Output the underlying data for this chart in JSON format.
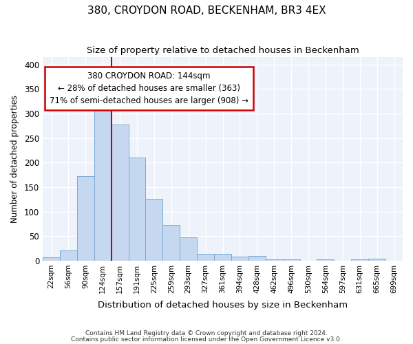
{
  "title": "380, CROYDON ROAD, BECKENHAM, BR3 4EX",
  "subtitle": "Size of property relative to detached houses in Beckenham",
  "xlabel": "Distribution of detached houses by size in Beckenham",
  "ylabel": "Number of detached properties",
  "bar_color": "#c5d8f0",
  "bar_edge_color": "#7aaad4",
  "background_color": "#eef2fb",
  "grid_color": "#ffffff",
  "fig_background": "#ffffff",
  "categories": [
    "22sqm",
    "56sqm",
    "90sqm",
    "124sqm",
    "157sqm",
    "191sqm",
    "225sqm",
    "259sqm",
    "293sqm",
    "327sqm",
    "361sqm",
    "394sqm",
    "428sqm",
    "462sqm",
    "496sqm",
    "530sqm",
    "564sqm",
    "597sqm",
    "631sqm",
    "665sqm",
    "699sqm"
  ],
  "values": [
    7,
    21,
    172,
    310,
    277,
    210,
    126,
    73,
    48,
    14,
    14,
    8,
    9,
    3,
    2,
    0,
    2,
    0,
    3,
    4,
    0
  ],
  "annotation_text": "380 CROYDON ROAD: 144sqm\n← 28% of detached houses are smaller (363)\n71% of semi-detached houses are larger (908) →",
  "annotation_box_color": "#ffffff",
  "annotation_border_color": "#cc0000",
  "vline_color": "#cc0000",
  "vline_x_index": 3.5,
  "ylim": [
    0,
    415
  ],
  "yticks": [
    0,
    50,
    100,
    150,
    200,
    250,
    300,
    350,
    400
  ],
  "footnote1": "Contains HM Land Registry data © Crown copyright and database right 2024.",
  "footnote2": "Contains public sector information licensed under the Open Government Licence v3.0."
}
